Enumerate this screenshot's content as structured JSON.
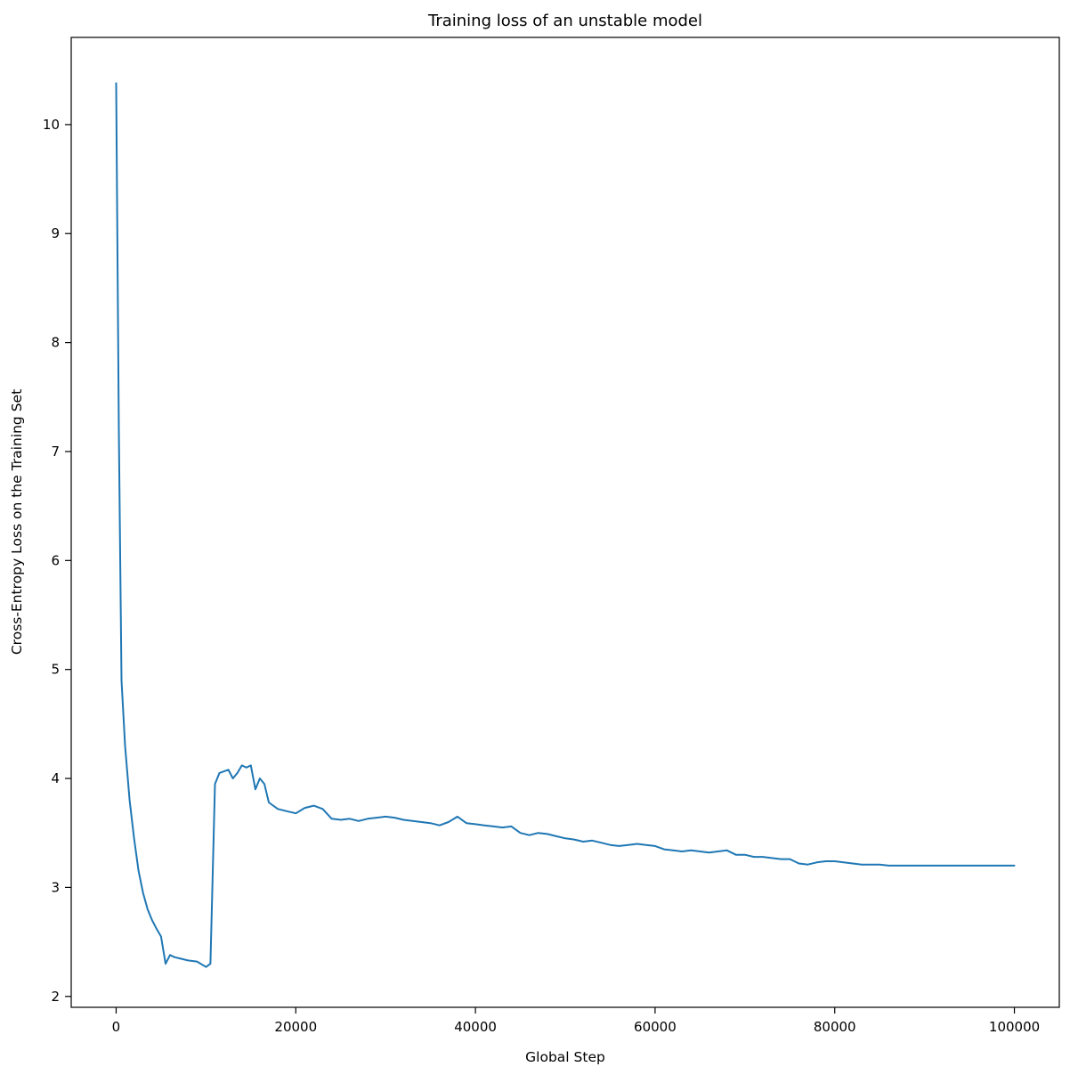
{
  "chart_data": {
    "type": "line",
    "title": "Training loss of an unstable model",
    "xlabel": "Global Step",
    "ylabel": "Cross-Entropy Loss on the Training Set",
    "legend": null,
    "grid": false,
    "line_color": "#1f77b4",
    "line_width": 2,
    "xlim": [
      -5000,
      105000
    ],
    "ylim": [
      1.9,
      10.8
    ],
    "xticks": [
      0,
      20000,
      40000,
      60000,
      80000,
      100000
    ],
    "yticks": [
      2,
      3,
      4,
      5,
      6,
      7,
      8,
      9,
      10
    ],
    "x": [
      0,
      300,
      600,
      1000,
      1500,
      2000,
      2500,
      3000,
      3500,
      4000,
      4500,
      5000,
      5500,
      6000,
      6500,
      7000,
      8000,
      9000,
      10000,
      10500,
      11000,
      11500,
      12500,
      13000,
      13500,
      14000,
      14500,
      15000,
      15500,
      16000,
      16500,
      17000,
      18000,
      19000,
      20000,
      21000,
      22000,
      23000,
      24000,
      25000,
      26000,
      27000,
      28000,
      29000,
      30000,
      31000,
      32000,
      33000,
      34000,
      35000,
      36000,
      37000,
      38000,
      39000,
      40000,
      41000,
      42000,
      43000,
      44000,
      45000,
      46000,
      47000,
      48000,
      49000,
      50000,
      51000,
      52000,
      53000,
      54000,
      55000,
      56000,
      57000,
      58000,
      59000,
      60000,
      61000,
      62000,
      63000,
      64000,
      65000,
      66000,
      67000,
      68000,
      69000,
      70000,
      71000,
      72000,
      73000,
      74000,
      75000,
      76000,
      77000,
      78000,
      79000,
      80000,
      81000,
      82000,
      83000,
      84000,
      85000,
      86000,
      88000,
      90000,
      92000,
      94000,
      96000,
      98000,
      100000
    ],
    "y": [
      10.38,
      7.2,
      4.9,
      4.3,
      3.8,
      3.45,
      3.15,
      2.95,
      2.8,
      2.7,
      2.62,
      2.55,
      2.3,
      2.38,
      2.36,
      2.35,
      2.33,
      2.32,
      2.27,
      2.3,
      3.95,
      4.05,
      4.08,
      4.0,
      4.05,
      4.12,
      4.1,
      4.12,
      3.9,
      4.0,
      3.95,
      3.78,
      3.72,
      3.7,
      3.68,
      3.73,
      3.75,
      3.72,
      3.63,
      3.62,
      3.63,
      3.61,
      3.63,
      3.64,
      3.65,
      3.64,
      3.62,
      3.61,
      3.6,
      3.59,
      3.57,
      3.6,
      3.65,
      3.59,
      3.58,
      3.57,
      3.56,
      3.55,
      3.56,
      3.5,
      3.48,
      3.5,
      3.49,
      3.47,
      3.45,
      3.44,
      3.42,
      3.43,
      3.41,
      3.39,
      3.38,
      3.39,
      3.4,
      3.39,
      3.38,
      3.35,
      3.34,
      3.33,
      3.34,
      3.33,
      3.32,
      3.33,
      3.34,
      3.3,
      3.3,
      3.28,
      3.28,
      3.27,
      3.26,
      3.26,
      3.22,
      3.21,
      3.23,
      3.24,
      3.24,
      3.23,
      3.22,
      3.21,
      3.21,
      3.21,
      3.2,
      3.2,
      3.2,
      3.2,
      3.2,
      3.2,
      3.2,
      3.2
    ]
  }
}
